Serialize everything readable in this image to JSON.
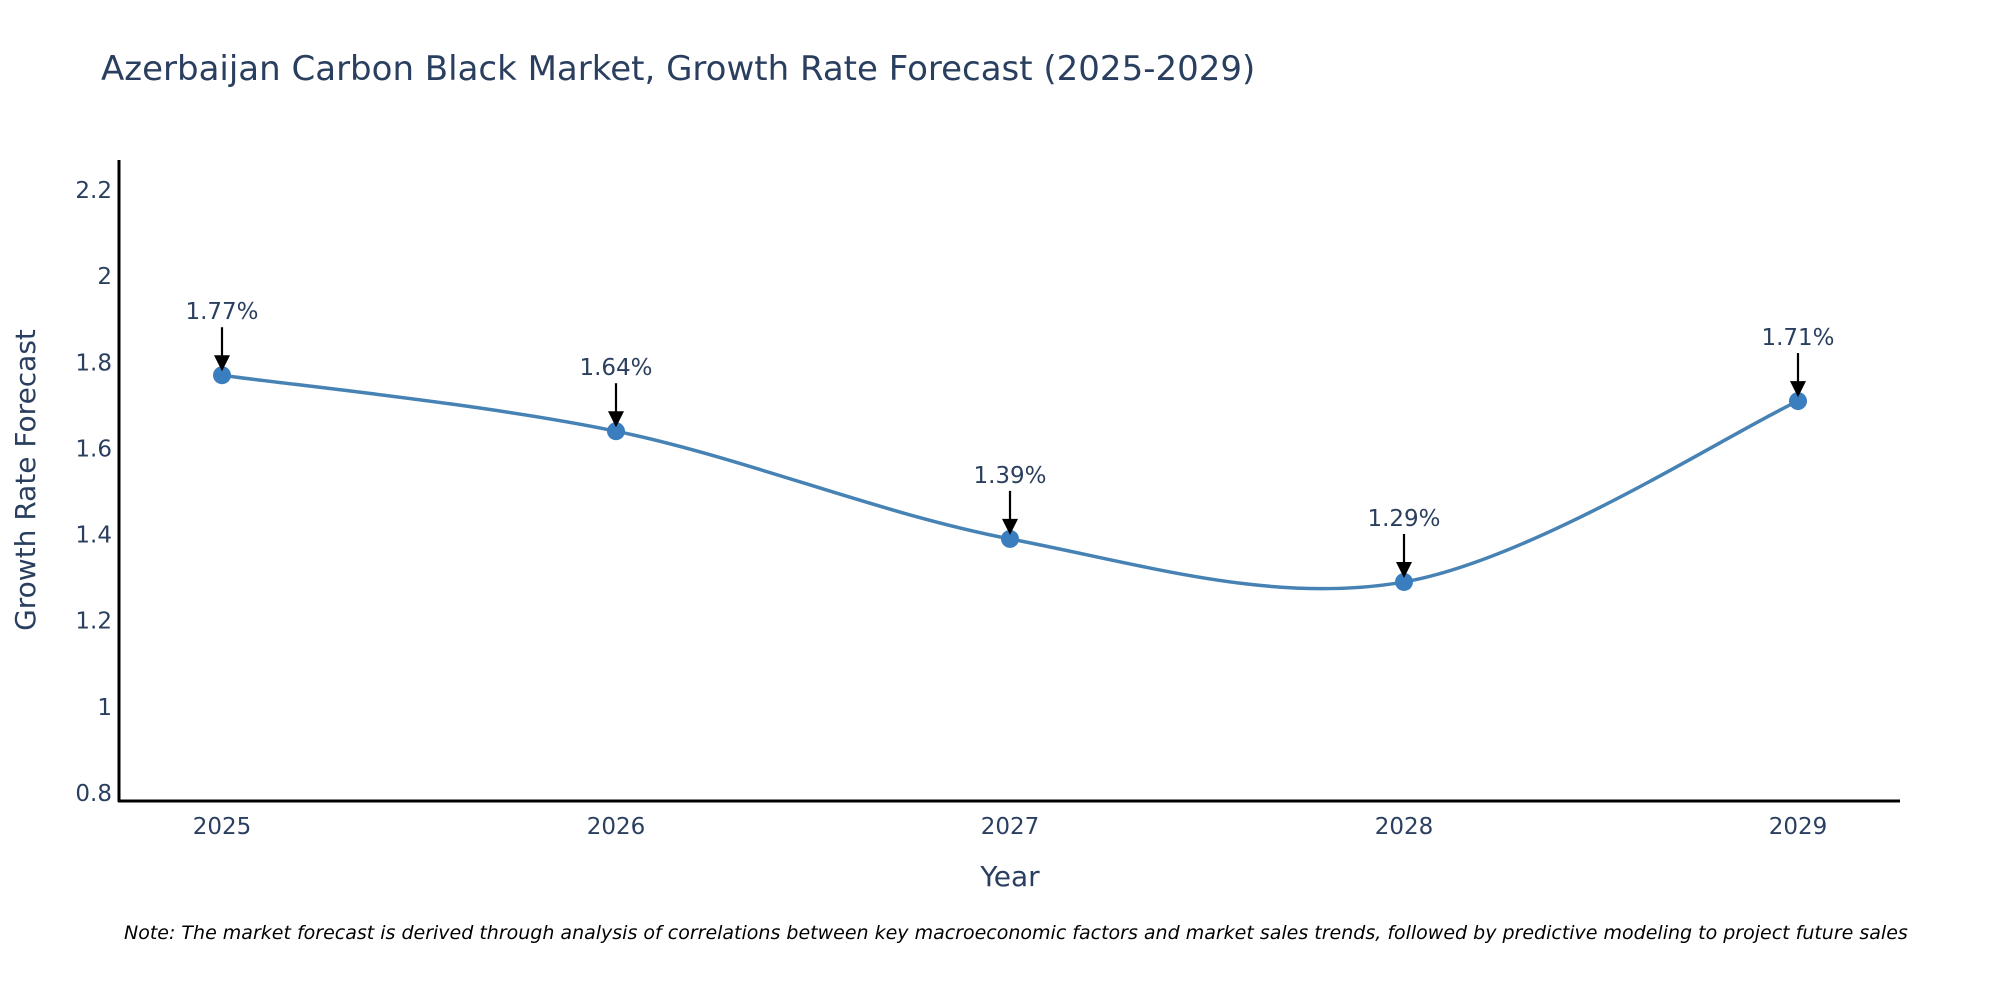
{
  "chart_data": {
    "type": "line",
    "title": "Azerbaijan Carbon Black Market, Growth Rate Forecast (2025-2029)",
    "xlabel": "Year",
    "ylabel": "Growth Rate Forecast",
    "categories": [
      "2025",
      "2026",
      "2027",
      "2028",
      "2029"
    ],
    "series": [
      {
        "name": "Growth Rate Forecast",
        "values": [
          1.77,
          1.64,
          1.39,
          1.29,
          1.71
        ],
        "line_shape": "spline",
        "markers": true
      }
    ],
    "annotations": [
      "1.77%",
      "1.64%",
      "1.39%",
      "1.29%",
      "1.71%"
    ],
    "yticks": [
      0.8,
      1,
      1.2,
      1.4,
      1.6,
      1.8,
      2,
      2.2
    ],
    "ytick_labels": [
      "0.8",
      "1",
      "1.2",
      "1.4",
      "1.6",
      "1.8",
      "2",
      "2.2"
    ],
    "ylim": [
      0.78,
      2.27
    ],
    "grid": false,
    "legend": "none",
    "colors": {
      "line": "#4682B4",
      "marker": "#3A7EBF",
      "text": "#2A3F5F",
      "axis": "#000000",
      "arrow": "#000000"
    },
    "note": "Note: The market forecast is derived through analysis of correlations between key macroeconomic factors and market sales trends, followed by predictive modeling to project future sales"
  }
}
